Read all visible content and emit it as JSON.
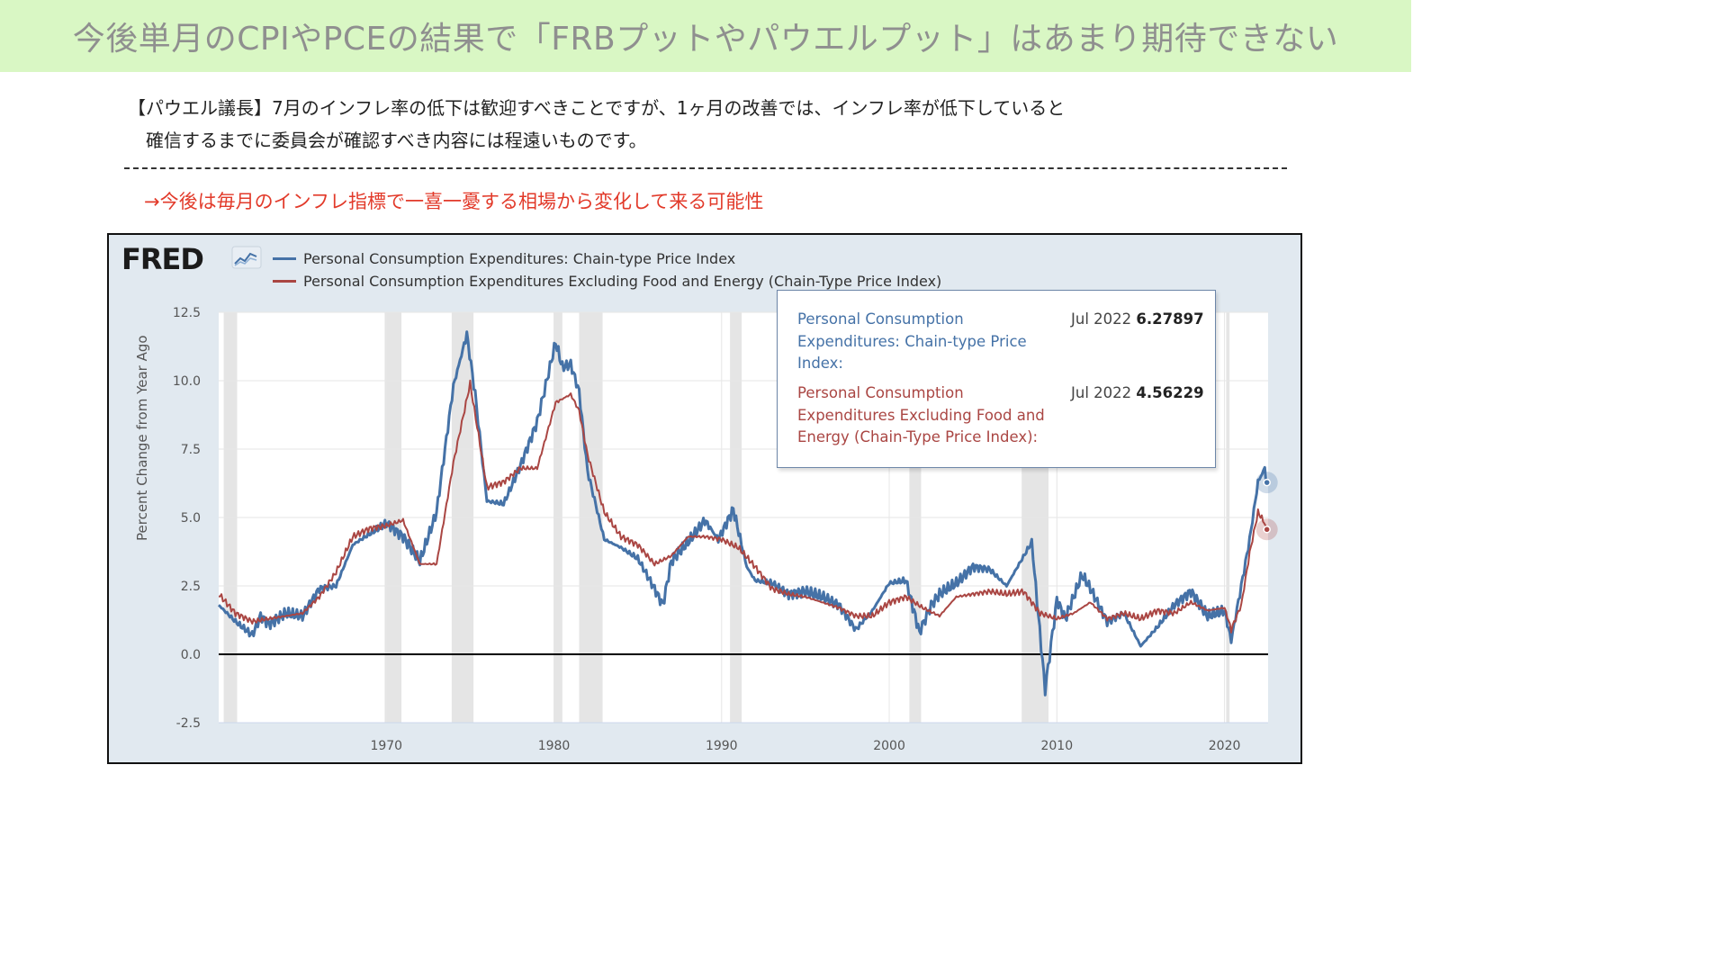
{
  "header": {
    "title": "今後単月のCPIやPCEの結果で「FRBプットやパウエルプット」はあまり期待できない"
  },
  "quote": {
    "line1": "【パウエル議長】7月のインフレ率の低下は歓迎すべきことですが、1ヶ月の改善では、インフレ率が低下していると",
    "line2": "確信するまでに委員会が確認すべき内容には程遠いものです。"
  },
  "note": "→今後は毎月のインフレ指標で一喜一憂する相場から変化して来る可能性",
  "colors": {
    "banner_bg": "#d9f7c4",
    "note_red": "#e23a2a",
    "series_pce": "#4572a7",
    "series_core": "#aa4643",
    "plot_bg": "#ffffff",
    "frame_bg": "#e1e9f0",
    "recession": "#e5e5e5"
  },
  "chart_data": {
    "type": "line",
    "source_logo": "FRED",
    "ylabel": "Percent Change from Year Ago",
    "ylim": [
      -2.5,
      12.5
    ],
    "xlim": [
      1960,
      2022.6
    ],
    "yticks": [
      "12.5",
      "10.0",
      "7.5",
      "5.0",
      "2.5",
      "0.0",
      "-2.5"
    ],
    "xticks": [
      "1970",
      "1980",
      "1990",
      "2000",
      "2010",
      "2020"
    ],
    "grid": "horizontal",
    "zero_line": true,
    "legend_position": "top-left",
    "recessions": [
      [
        1960.3,
        1961.1
      ],
      [
        1969.9,
        1970.9
      ],
      [
        1973.9,
        1975.2
      ],
      [
        1980.0,
        1980.5
      ],
      [
        1981.5,
        1982.9
      ],
      [
        1990.5,
        1991.2
      ],
      [
        2001.2,
        2001.9
      ],
      [
        2007.9,
        2009.5
      ],
      [
        2020.1,
        2020.3
      ]
    ],
    "series": [
      {
        "name": "Personal Consumption Expenditures: Chain-type Price Index",
        "color": "#4572a7",
        "points": [
          [
            1960,
            1.8
          ],
          [
            1961,
            1.2
          ],
          [
            1962,
            0.7
          ],
          [
            1962.5,
            1.4
          ],
          [
            1963,
            1.1
          ],
          [
            1964,
            1.5
          ],
          [
            1965,
            1.4
          ],
          [
            1966,
            2.4
          ],
          [
            1967,
            2.5
          ],
          [
            1968,
            4.0
          ],
          [
            1969,
            4.4
          ],
          [
            1970,
            4.8
          ],
          [
            1971,
            4.3
          ],
          [
            1972,
            3.4
          ],
          [
            1973,
            5.2
          ],
          [
            1974,
            9.8
          ],
          [
            1974.8,
            11.7
          ],
          [
            1975.3,
            9.5
          ],
          [
            1976,
            5.6
          ],
          [
            1977,
            5.5
          ],
          [
            1978,
            6.9
          ],
          [
            1979,
            8.5
          ],
          [
            1980.1,
            11.4
          ],
          [
            1980.5,
            10.5
          ],
          [
            1981,
            10.6
          ],
          [
            1981.5,
            9.6
          ],
          [
            1982,
            6.7
          ],
          [
            1983,
            4.2
          ],
          [
            1984,
            3.9
          ],
          [
            1985,
            3.5
          ],
          [
            1986,
            2.4
          ],
          [
            1986.5,
            1.8
          ],
          [
            1987,
            3.4
          ],
          [
            1988,
            4.1
          ],
          [
            1989,
            4.9
          ],
          [
            1989.8,
            4.2
          ],
          [
            1990.7,
            5.3
          ],
          [
            1991.5,
            3.2
          ],
          [
            1992,
            2.7
          ],
          [
            1993,
            2.6
          ],
          [
            1994,
            2.2
          ],
          [
            1995,
            2.3
          ],
          [
            1996,
            2.1
          ],
          [
            1997,
            1.8
          ],
          [
            1998,
            0.9
          ],
          [
            1999,
            1.6
          ],
          [
            2000,
            2.6
          ],
          [
            2001,
            2.7
          ],
          [
            2001.8,
            0.8
          ],
          [
            2002.5,
            1.8
          ],
          [
            2003,
            2.2
          ],
          [
            2004,
            2.6
          ],
          [
            2005,
            3.2
          ],
          [
            2006,
            3.1
          ],
          [
            2007,
            2.5
          ],
          [
            2008.5,
            4.1
          ],
          [
            2009.3,
            -1.3
          ],
          [
            2010,
            2.0
          ],
          [
            2010.5,
            1.3
          ],
          [
            2011.5,
            2.9
          ],
          [
            2012,
            2.4
          ],
          [
            2013,
            1.2
          ],
          [
            2014,
            1.5
          ],
          [
            2015,
            0.3
          ],
          [
            2016,
            1.0
          ],
          [
            2017,
            1.8
          ],
          [
            2018,
            2.3
          ],
          [
            2019,
            1.4
          ],
          [
            2020,
            1.6
          ],
          [
            2020.4,
            0.5
          ],
          [
            2021,
            2.5
          ],
          [
            2021.5,
            4.2
          ],
          [
            2022.0,
            6.3
          ],
          [
            2022.4,
            6.8
          ],
          [
            2022.53,
            6.27897
          ]
        ]
      },
      {
        "name": "Personal Consumption Expenditures Excluding Food and Energy (Chain-Type Price Index)",
        "color": "#aa4643",
        "points": [
          [
            1960,
            2.2
          ],
          [
            1961,
            1.5
          ],
          [
            1962,
            1.2
          ],
          [
            1963,
            1.3
          ],
          [
            1964,
            1.4
          ],
          [
            1965,
            1.5
          ],
          [
            1966,
            2.1
          ],
          [
            1967,
            3.0
          ],
          [
            1968,
            4.3
          ],
          [
            1969,
            4.6
          ],
          [
            1970,
            4.7
          ],
          [
            1971,
            4.9
          ],
          [
            1972,
            3.3
          ],
          [
            1973,
            3.3
          ],
          [
            1974,
            7.0
          ],
          [
            1975,
            9.9
          ],
          [
            1976,
            6.1
          ],
          [
            1977,
            6.3
          ],
          [
            1978,
            6.8
          ],
          [
            1979,
            6.8
          ],
          [
            1980.1,
            9.2
          ],
          [
            1981,
            9.5
          ],
          [
            1981.5,
            8.9
          ],
          [
            1982,
            7.3
          ],
          [
            1983,
            5.2
          ],
          [
            1984,
            4.3
          ],
          [
            1985,
            4.0
          ],
          [
            1986,
            3.3
          ],
          [
            1987,
            3.6
          ],
          [
            1988,
            4.3
          ],
          [
            1989,
            4.3
          ],
          [
            1990,
            4.2
          ],
          [
            1991,
            3.9
          ],
          [
            1992,
            3.2
          ],
          [
            1993,
            2.4
          ],
          [
            1994,
            2.2
          ],
          [
            1995,
            2.1
          ],
          [
            1996,
            1.9
          ],
          [
            1997,
            1.7
          ],
          [
            1998,
            1.4
          ],
          [
            1999,
            1.4
          ],
          [
            2000,
            1.9
          ],
          [
            2001,
            2.1
          ],
          [
            2002,
            1.7
          ],
          [
            2003,
            1.4
          ],
          [
            2004,
            2.1
          ],
          [
            2005,
            2.2
          ],
          [
            2006,
            2.3
          ],
          [
            2007,
            2.2
          ],
          [
            2008,
            2.3
          ],
          [
            2009,
            1.5
          ],
          [
            2010,
            1.3
          ],
          [
            2011,
            1.5
          ],
          [
            2012,
            1.9
          ],
          [
            2013,
            1.3
          ],
          [
            2014,
            1.5
          ],
          [
            2015,
            1.3
          ],
          [
            2016,
            1.6
          ],
          [
            2017,
            1.5
          ],
          [
            2018,
            1.9
          ],
          [
            2019,
            1.6
          ],
          [
            2020,
            1.7
          ],
          [
            2020.4,
            0.9
          ],
          [
            2021,
            1.8
          ],
          [
            2021.5,
            3.7
          ],
          [
            2022.0,
            5.2
          ],
          [
            2022.3,
            4.9
          ],
          [
            2022.53,
            4.56229
          ]
        ]
      }
    ],
    "tooltip": {
      "date": "Jul 2022",
      "items": [
        {
          "label": "Personal Consumption Expenditures: Chain-type Price Index:",
          "value": "6.27897"
        },
        {
          "label": "Personal Consumption Expenditures Excluding Food and Energy (Chain-Type Price Index):",
          "value": "4.56229"
        }
      ]
    }
  }
}
